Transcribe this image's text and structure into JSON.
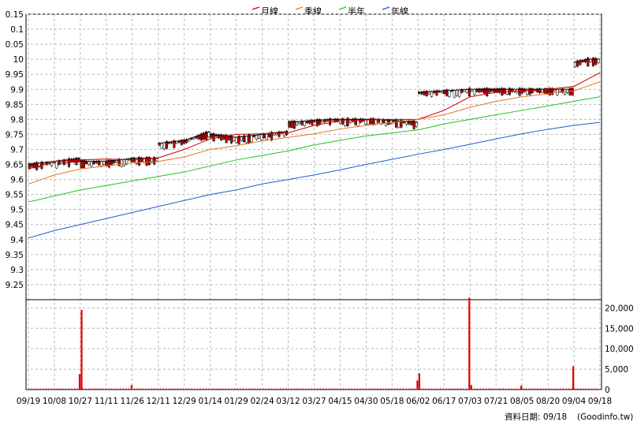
{
  "legend": [
    {
      "label": "月線",
      "color": "#cc0000"
    },
    {
      "label": "季線",
      "color": "#e8741c"
    },
    {
      "label": "半年",
      "color": "#1fc41f"
    },
    {
      "label": "年線",
      "color": "#1a5fd0"
    }
  ],
  "footer": {
    "date_label": "資料日期: 09/18",
    "source": "(Goodinfo.tw)"
  },
  "chart_data": [
    {
      "type": "line",
      "panel": "price",
      "ylim": [
        9.2,
        10.15
      ],
      "y_ticks": [
        "0.15",
        "0.1",
        "0.05",
        "10",
        "9.95",
        "9.9",
        "9.85",
        "9.8",
        "9.75",
        "9.7",
        "9.65",
        "9.6",
        "9.55",
        "9.5",
        "9.45",
        "9.4",
        "9.35",
        "9.3",
        "9.25"
      ],
      "x_ticks": [
        "09/19",
        "10/08",
        "10/27",
        "11/11",
        "11/26",
        "12/11",
        "12/29",
        "01/14",
        "01/29",
        "02/24",
        "03/12",
        "03/27",
        "04/15",
        "04/30",
        "05/18",
        "06/02",
        "06/17",
        "07/03",
        "07/21",
        "08/05",
        "08/20",
        "09/04",
        "09/18"
      ],
      "close_segments": [
        {
          "from": "09/19",
          "to": "10/27",
          "values": [
            9.65,
            9.66,
            9.67
          ]
        },
        {
          "from": "10/27",
          "to": "12/11",
          "values": [
            9.66,
            9.66,
            9.67,
            9.67
          ]
        },
        {
          "from": "12/11",
          "to": "01/14",
          "values": [
            9.72,
            9.73,
            9.76
          ]
        },
        {
          "from": "01/14",
          "to": "03/12",
          "values": [
            9.75,
            9.74,
            9.75,
            9.76
          ]
        },
        {
          "from": "03/12",
          "to": "06/02",
          "values": [
            9.79,
            9.8,
            9.8,
            9.79
          ]
        },
        {
          "from": "06/02",
          "to": "09/04",
          "values": [
            9.89,
            9.9,
            9.9,
            9.9
          ]
        },
        {
          "from": "09/04",
          "to": "09/18",
          "values": [
            9.99,
            10.0,
            10.0
          ]
        }
      ],
      "series": [
        {
          "name": "月線",
          "values": [
            9.635,
            9.66,
            9.665,
            9.668,
            9.665,
            9.672,
            9.7,
            9.735,
            9.75,
            9.752,
            9.755,
            9.78,
            9.795,
            9.798,
            9.8,
            9.8,
            9.83,
            9.875,
            9.89,
            9.895,
            9.9,
            9.91,
            9.955
          ]
        },
        {
          "name": "季線",
          "values": [
            9.585,
            9.615,
            9.635,
            9.645,
            9.655,
            9.66,
            9.675,
            9.7,
            9.712,
            9.728,
            9.74,
            9.752,
            9.768,
            9.78,
            9.79,
            9.8,
            9.815,
            9.84,
            9.86,
            9.875,
            9.885,
            9.895,
            9.925
          ]
        },
        {
          "name": "半年",
          "values": [
            9.525,
            9.545,
            9.565,
            9.58,
            9.595,
            9.61,
            9.625,
            9.645,
            9.665,
            9.68,
            9.695,
            9.715,
            9.73,
            9.745,
            9.755,
            9.765,
            9.785,
            9.8,
            9.815,
            9.83,
            9.845,
            9.86,
            9.875
          ]
        },
        {
          "name": "年線",
          "values": [
            9.405,
            9.43,
            9.45,
            9.47,
            9.49,
            9.51,
            9.53,
            9.55,
            9.565,
            9.585,
            9.6,
            9.615,
            9.632,
            9.65,
            9.667,
            9.684,
            9.7,
            9.717,
            9.735,
            9.752,
            9.767,
            9.78,
            9.79
          ]
        }
      ]
    },
    {
      "type": "bar",
      "panel": "volume",
      "ylim": [
        0,
        22000
      ],
      "y_ticks": [
        "20,000",
        "15,000",
        "10,000",
        "5,000",
        "0"
      ],
      "spikes": [
        {
          "date": "10/27",
          "value": 3800
        },
        {
          "date": "10/27",
          "value": 19500
        },
        {
          "date": "11/26",
          "value": 1100
        },
        {
          "date": "06/02",
          "value": 2200
        },
        {
          "date": "06/02",
          "value": 4000
        },
        {
          "date": "07/03",
          "value": 22500
        },
        {
          "date": "07/03",
          "value": 1100
        },
        {
          "date": "08/05",
          "value": 1000
        },
        {
          "date": "09/04",
          "value": 5700
        }
      ]
    }
  ]
}
